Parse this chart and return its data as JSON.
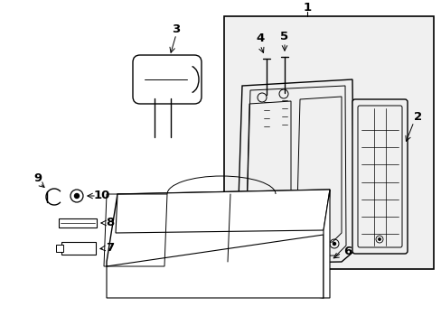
{
  "background_color": "#ffffff",
  "line_color": "#000000",
  "fill_color": "#f0f0f0",
  "white": "#ffffff"
}
